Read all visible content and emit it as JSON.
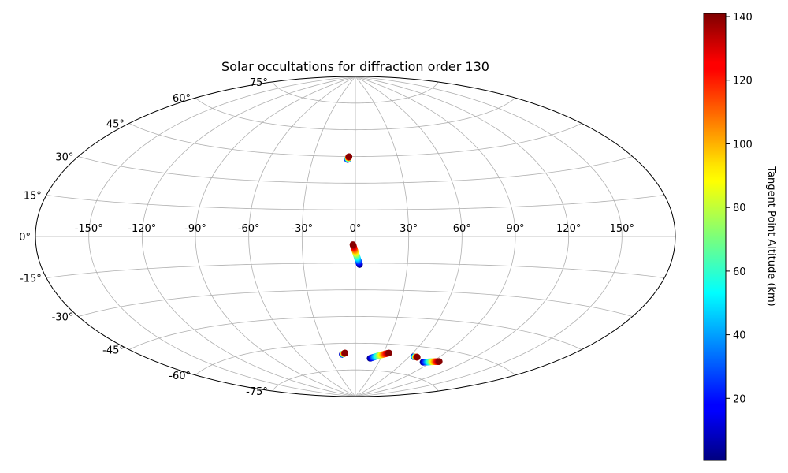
{
  "chart_data": {
    "type": "scatter",
    "title": "Solar occultations for diffraction order 130",
    "projection": "aitoff",
    "grid": true,
    "longitude_ticks": [
      "-150°",
      "-120°",
      "-90°",
      "-60°",
      "-30°",
      "0°",
      "30°",
      "60°",
      "90°",
      "120°",
      "150°"
    ],
    "longitude_tick_values": [
      -150,
      -120,
      -90,
      -60,
      -30,
      0,
      30,
      60,
      90,
      120,
      150
    ],
    "latitude_ticks": [
      "-75°",
      "-60°",
      "-45°",
      "-30°",
      "-15°",
      "0°",
      "15°",
      "30°",
      "45°",
      "60°",
      "75°"
    ],
    "latitude_tick_values": [
      -75,
      -60,
      -45,
      -30,
      -15,
      0,
      15,
      30,
      45,
      60,
      75
    ],
    "colorbar": {
      "label": "Tangent Point Altitude (km)",
      "colormap": "jet",
      "range": [
        0.5,
        141
      ],
      "ticks": [
        "20",
        "40",
        "60",
        "80",
        "100",
        "120",
        "140"
      ],
      "tick_values": [
        20,
        40,
        60,
        80,
        100,
        120,
        140
      ]
    },
    "tracks": [
      {
        "lon_start": -5.5,
        "lat_start": 43.3,
        "lon_end": -4.6,
        "lat_end": 44.9,
        "alt_min": 5,
        "alt_max": 140
      },
      {
        "lon_start": 2.4,
        "lat_start": -15.8,
        "lon_end": -1.4,
        "lat_end": -4.6,
        "alt_min": 1,
        "alt_max": 140
      },
      {
        "lon_start": -14.5,
        "lat_start": -66.2,
        "lon_end": -11.2,
        "lat_end": -65.5,
        "alt_min": 1,
        "alt_max": 140
      },
      {
        "lon_start": 17.5,
        "lat_start": -68.4,
        "lon_end": 35.9,
        "lat_end": -64.9,
        "alt_min": 1,
        "alt_max": 140
      },
      {
        "lon_start": 64.8,
        "lat_start": -65.6,
        "lon_end": 68.8,
        "lat_end": -65.6,
        "alt_min": 1,
        "alt_max": 140
      },
      {
        "lon_start": 81.5,
        "lat_start": -67.6,
        "lon_end": 96.6,
        "lat_end": -65.8,
        "alt_min": 1,
        "alt_max": 140
      }
    ]
  }
}
